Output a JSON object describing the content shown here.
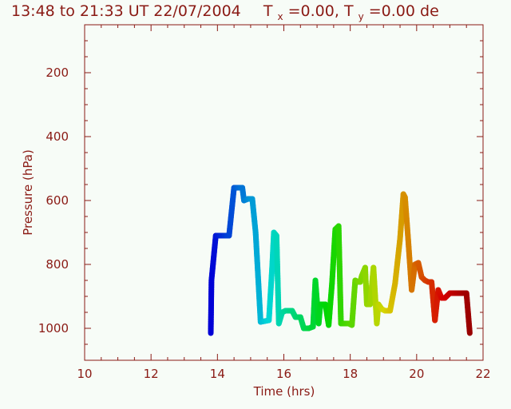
{
  "chart_data": {
    "type": "line",
    "title_main": "13:48 to 21:33 UT 22/07/2004",
    "title_tx_prefix": "T",
    "title_tx_sub": "x",
    "title_tx_value": "=0.00, ",
    "title_ty_prefix": "T",
    "title_ty_sub": "y",
    "title_ty_value": "=0.00 de",
    "xlabel": "Time  (hrs)",
    "ylabel": "Pressure  (hPa)",
    "xlim": [
      10,
      22
    ],
    "ylim": [
      1100,
      50
    ],
    "y_inverted": true,
    "x_ticks": [
      10,
      12,
      14,
      16,
      18,
      20,
      22
    ],
    "y_ticks": [
      200,
      400,
      600,
      800,
      1000
    ],
    "x_tick_labels": [
      "10",
      "12",
      "14",
      "16",
      "18",
      "20",
      "22"
    ],
    "y_tick_labels": [
      "200",
      "400",
      "600",
      "800",
      "1000"
    ],
    "colormap": "rainbow by time",
    "grid": false,
    "legend": "none",
    "series": [
      {
        "x": [
          13.8,
          13.82,
          13.95,
          14.0,
          14.35,
          14.5,
          14.75,
          14.8,
          14.92,
          15.05,
          15.15,
          15.3,
          15.55,
          15.65,
          15.7,
          15.78,
          15.85,
          15.95,
          16.05,
          16.25,
          16.35,
          16.5,
          16.6,
          16.75,
          16.88,
          16.95,
          17.05,
          17.1,
          17.25,
          17.35,
          17.45,
          17.55,
          17.65,
          17.72,
          17.85,
          17.95,
          18.05,
          18.15,
          18.25,
          18.3,
          18.35,
          18.45,
          18.5,
          18.6,
          18.7,
          18.8,
          18.85,
          18.95,
          19.05,
          19.2,
          19.35,
          19.5,
          19.6,
          19.65,
          19.75,
          19.85,
          19.95,
          20.05,
          20.15,
          20.25,
          20.35,
          20.45,
          20.55,
          20.65,
          20.75,
          20.85,
          21.0,
          21.15,
          21.35,
          21.5,
          21.6
        ],
        "y": [
          1015,
          850,
          710,
          710,
          710,
          560,
          560,
          600,
          595,
          595,
          700,
          980,
          975,
          805,
          700,
          710,
          985,
          950,
          945,
          945,
          965,
          965,
          1000,
          1000,
          995,
          850,
          985,
          925,
          925,
          990,
          860,
          690,
          680,
          985,
          985,
          985,
          990,
          850,
          855,
          855,
          835,
          810,
          925,
          925,
          810,
          985,
          925,
          940,
          945,
          945,
          860,
          720,
          580,
          590,
          730,
          880,
          800,
          795,
          840,
          850,
          855,
          855,
          975,
          880,
          905,
          905,
          890,
          890,
          890,
          890,
          1015
        ]
      }
    ]
  }
}
